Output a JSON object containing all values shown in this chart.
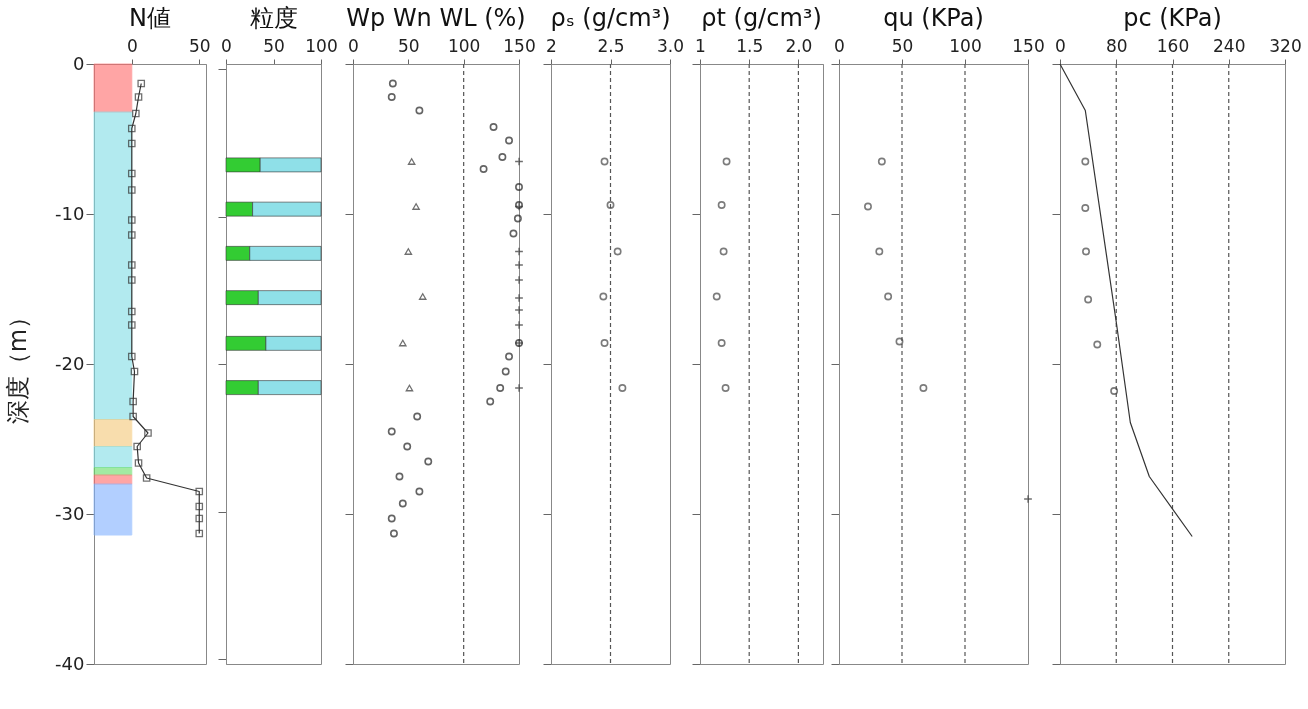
{
  "chart_data": [
    {
      "type": "line",
      "title": "N値",
      "ylabel": "深度（m）",
      "xlim": [
        -28,
        55
      ],
      "xticks": [
        0,
        50
      ],
      "ylim": [
        -40,
        0
      ],
      "yticks": [
        0,
        -10,
        -20,
        -30,
        -40
      ],
      "marker": "square",
      "series": [
        {
          "color": "#333333",
          "x": [
            7,
            5,
            3,
            0,
            0,
            0,
            0,
            0,
            0,
            0,
            0,
            0,
            0,
            0,
            2,
            1,
            1,
            12,
            4,
            5,
            11,
            50,
            50,
            50,
            50
          ],
          "values": [
            -1.3,
            -2.2,
            -3.3,
            -4.3,
            -5.3,
            -7.3,
            -8.4,
            -10.4,
            -11.4,
            -13.4,
            -14.4,
            -16.5,
            -17.4,
            -19.5,
            -20.5,
            -22.5,
            -23.5,
            -24.6,
            -25.5,
            -26.6,
            -27.6,
            -28.5,
            -29.5,
            -30.3,
            -31.3
          ]
        }
      ],
      "bands": [
        {
          "axis": "y",
          "from": 0,
          "to": -3.2,
          "color": "#ff6b6b"
        },
        {
          "axis": "y",
          "from": -3.2,
          "to": -23.7,
          "color": "#7fdde6"
        },
        {
          "axis": "y",
          "from": -23.7,
          "to": -25.5,
          "color": "#f5c878"
        },
        {
          "axis": "y",
          "from": -25.5,
          "to": -26.9,
          "color": "#7fdde6"
        },
        {
          "axis": "y",
          "from": -26.9,
          "to": -27.4,
          "color": "#66dd66"
        },
        {
          "axis": "y",
          "from": -27.4,
          "to": -28,
          "color": "#ff6b6b"
        },
        {
          "axis": "y",
          "from": -28,
          "to": -31.4,
          "color": "#7fb0ff"
        }
      ]
    },
    {
      "type": "bar",
      "title": "粒度",
      "orientation": "horizontal",
      "stacked": true,
      "xlim": [
        0,
        100
      ],
      "xticks": [
        0,
        50,
        100
      ],
      "ylim": [
        -40,
        0
      ],
      "yticks": [
        0,
        -10,
        -20,
        -30,
        -40
      ],
      "tick_labels": "x",
      "x": [
        -6.5,
        -9.5,
        -12.5,
        -15.5,
        -18.6,
        -21.6
      ],
      "series": [
        {
          "color": "#33cc33",
          "values": [
            36,
            28,
            25,
            34,
            42,
            34
          ]
        },
        {
          "color": "#8fe0e8",
          "values": [
            64,
            72,
            75,
            66,
            58,
            66
          ]
        }
      ]
    },
    {
      "type": "scatter",
      "title": "Wp Wn WL (%)",
      "xlim": [
        0,
        150
      ],
      "xticks": [
        0,
        50,
        100,
        150
      ],
      "ylim": [
        -40,
        0
      ],
      "yticks": [
        0,
        -10,
        -20,
        -30,
        -40
      ],
      "tick_labels": "x",
      "ref_lines": [
        {
          "axis": "x",
          "value": 100,
          "line_style": "dashed",
          "color": "#555555"
        }
      ],
      "series": [
        {
          "color": "#333333",
          "marker": "triangle",
          "x": [
            53,
            57,
            50,
            63,
            45,
            51
          ],
          "values": [
            -6.5,
            -9.5,
            -12.5,
            -15.5,
            -18.6,
            -21.6
          ]
        },
        {
          "color": "#222222",
          "marker": "circle",
          "x": [
            36,
            35,
            60,
            127,
            141,
            135,
            118,
            150,
            150,
            149,
            145,
            150,
            141,
            138,
            133,
            124,
            58,
            35,
            49,
            68,
            42,
            60,
            45,
            35,
            37
          ],
          "values": [
            -1.3,
            -2.2,
            -3.1,
            -4.2,
            -5.1,
            -6.2,
            -7.0,
            -8.2,
            -9.4,
            -10.3,
            -11.3,
            -18.6,
            -19.5,
            -20.5,
            -21.6,
            -22.5,
            -23.5,
            -24.5,
            -25.5,
            -26.5,
            -27.5,
            -28.5,
            -29.3,
            -30.3,
            -31.3
          ]
        },
        {
          "color": "#333333",
          "marker": "cross",
          "x": [
            150,
            150,
            150,
            150,
            150,
            150,
            150,
            150,
            150,
            150
          ],
          "values": [
            -6.5,
            -9.5,
            -12.5,
            -13.4,
            -14.4,
            -15.6,
            -16.4,
            -17.4,
            -18.6,
            -21.6
          ]
        }
      ]
    },
    {
      "type": "scatter",
      "title": "ρₛ (g/cm³)",
      "xlim": [
        2,
        3
      ],
      "xticks": [
        2,
        2.5,
        {
          "value": 3,
          "label": "3.0"
        }
      ],
      "ylim": [
        -40,
        0
      ],
      "yticks": [
        0,
        -10,
        -20,
        -30,
        -40
      ],
      "tick_labels": "x",
      "ref_lines": [
        {
          "axis": "x",
          "value": 2.5,
          "line_style": "dashed",
          "color": "#555555"
        }
      ],
      "marker": "circle",
      "series": [
        {
          "color": "#444444",
          "x": [
            2.45,
            2.5,
            2.56,
            2.44,
            2.45,
            2.6
          ],
          "values": [
            -6.5,
            -9.4,
            -12.5,
            -15.5,
            -18.6,
            -21.6
          ]
        }
      ]
    },
    {
      "type": "scatter",
      "title": "ρt (g/cm³)",
      "xlim": [
        1,
        2.25
      ],
      "xticks": [
        1,
        1.5,
        {
          "value": 2,
          "label": "2.0"
        }
      ],
      "ylim": [
        -40,
        0
      ],
      "yticks": [
        0,
        -10,
        -20,
        -30,
        -40
      ],
      "tick_labels": "x",
      "ref_lines": [
        {
          "axis": "x",
          "value": 1.5,
          "line_style": "dashed",
          "color": "#555555"
        },
        {
          "axis": "x",
          "value": 2,
          "line_style": "dashed",
          "color": "#555555"
        }
      ],
      "marker": "circle",
      "series": [
        {
          "color": "#444444",
          "x": [
            1.27,
            1.22,
            1.24,
            1.17,
            1.22,
            1.26
          ],
          "values": [
            -6.5,
            -9.4,
            -12.5,
            -15.5,
            -18.6,
            -21.6
          ]
        }
      ]
    },
    {
      "type": "scatter",
      "title": "qu (KPa)",
      "xlim": [
        0,
        150
      ],
      "xticks": [
        0,
        50,
        100,
        150
      ],
      "ylim": [
        -40,
        0
      ],
      "yticks": [
        0,
        -10,
        -20,
        -30,
        -40
      ],
      "tick_labels": "x",
      "ref_lines": [
        {
          "axis": "x",
          "value": 50,
          "line_style": "dashed",
          "color": "#555555"
        },
        {
          "axis": "x",
          "value": 100,
          "line_style": "dashed",
          "color": "#555555"
        }
      ],
      "series": [
        {
          "color": "#444444",
          "marker": "circle",
          "x": [
            34,
            23,
            32,
            39,
            48,
            67
          ],
          "values": [
            -6.5,
            -9.5,
            -12.5,
            -15.5,
            -18.5,
            -21.6
          ]
        },
        {
          "color": "#333333",
          "marker": "cross",
          "x": [
            150
          ],
          "values": [
            -29
          ]
        }
      ]
    },
    {
      "type": "scatter",
      "title": "pc (KPa)",
      "xlim": [
        0,
        320
      ],
      "xticks": [
        0,
        80,
        160,
        240,
        320
      ],
      "ylim": [
        -40,
        0
      ],
      "yticks": [
        0,
        -10,
        -20,
        -30,
        -40
      ],
      "tick_labels": "x",
      "ref_lines": [
        {
          "axis": "x",
          "value": 80,
          "line_style": "dashed",
          "color": "#555555"
        },
        {
          "axis": "x",
          "value": 160,
          "line_style": "dashed",
          "color": "#555555"
        },
        {
          "axis": "x",
          "value": 240,
          "line_style": "dashed",
          "color": "#555555"
        }
      ],
      "series": [
        {
          "color": "#444444",
          "marker": "circle",
          "x": [
            36,
            36,
            37,
            40,
            53,
            77
          ],
          "values": [
            -6.5,
            -9.6,
            -12.5,
            -15.7,
            -18.7,
            -21.8
          ]
        },
        {
          "type": "line",
          "color": "#333333",
          "marker": "none",
          "x": [
            0,
            36,
            80,
            100,
            127,
            188
          ],
          "values": [
            0,
            -3.1,
            -17.2,
            -23.9,
            -27.5,
            -31.5
          ]
        }
      ]
    }
  ]
}
